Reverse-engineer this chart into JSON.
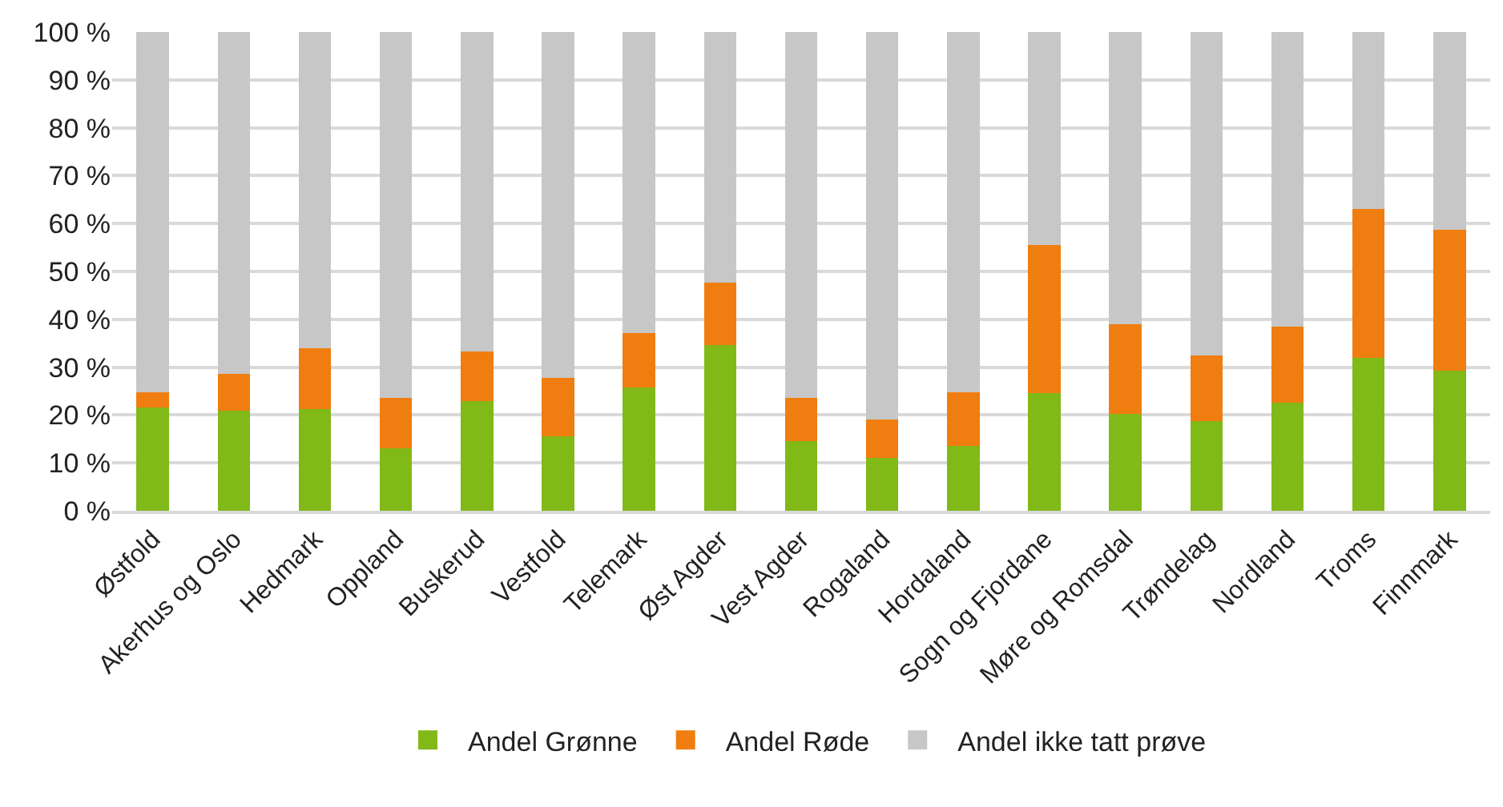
{
  "chart_data": {
    "type": "bar",
    "stacked": true,
    "categories": [
      "Østfold",
      "Akerhus og Oslo",
      "Hedmark",
      "Oppland",
      "Buskerud",
      "Vestfold",
      "Telemark",
      "Øst Agder",
      "Vest Agder",
      "Rogaland",
      "Hordaland",
      "Sogn og Fjordane",
      "Møre og Romsdal",
      "Trøndelag",
      "Nordland",
      "Troms",
      "Finnmark"
    ],
    "series": [
      {
        "name": "Andel Grønne",
        "color": "#80b918",
        "values": [
          21.5,
          20.9,
          21.2,
          13.1,
          22.9,
          15.5,
          25.8,
          34.6,
          14.5,
          11.1,
          13.6,
          24.6,
          20.2,
          18.7,
          22.6,
          32.0,
          29.3
        ]
      },
      {
        "name": "Andel Røde",
        "color": "#f07d10",
        "values": [
          3.3,
          7.7,
          12.7,
          10.4,
          10.3,
          12.3,
          11.4,
          13.0,
          9.0,
          7.9,
          11.2,
          31.0,
          18.7,
          13.8,
          15.9,
          31.0,
          29.4
        ]
      },
      {
        "name": "Andel ikke tatt prøve",
        "color": "#c6c7c6",
        "values": [
          75.2,
          71.4,
          66.1,
          76.5,
          66.8,
          72.2,
          62.8,
          52.4,
          76.5,
          81.0,
          75.2,
          44.4,
          61.1,
          67.5,
          61.5,
          37.0,
          41.3
        ]
      }
    ],
    "ylim": [
      0,
      100
    ],
    "yticks": [
      {
        "value": 0,
        "label": "0 %"
      },
      {
        "value": 10,
        "label": "10 %"
      },
      {
        "value": 20,
        "label": "20 %"
      },
      {
        "value": 30,
        "label": "30 %"
      },
      {
        "value": 40,
        "label": "40 %"
      },
      {
        "value": 50,
        "label": "50 %"
      },
      {
        "value": 60,
        "label": "60 %"
      },
      {
        "value": 70,
        "label": "70 %"
      },
      {
        "value": 80,
        "label": "80 %"
      },
      {
        "value": 90,
        "label": "90 %"
      },
      {
        "value": 100,
        "label": "100 %"
      }
    ],
    "grid": "y",
    "legend": "bottom"
  }
}
